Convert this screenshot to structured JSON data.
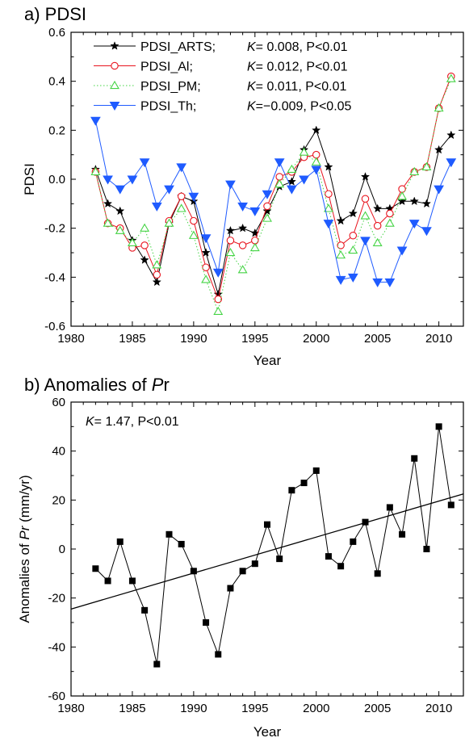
{
  "chart_data": [
    {
      "type": "line",
      "title": "a) PDSI",
      "xlabel": "Year",
      "ylabel": "PDSI",
      "xlim": [
        1980,
        2012
      ],
      "ylim": [
        -0.6,
        0.6
      ],
      "xticks": [
        "1980",
        "1985",
        "1990",
        "1995",
        "2000",
        "2005",
        "2010"
      ],
      "yticks": [
        "-0.6",
        "-0.4",
        "-0.2",
        "0.0",
        "0.2",
        "0.4",
        "0.6"
      ],
      "x": [
        1982,
        1983,
        1984,
        1985,
        1986,
        1987,
        1988,
        1989,
        1990,
        1991,
        1992,
        1993,
        1994,
        1995,
        1996,
        1997,
        1998,
        1999,
        2000,
        2001,
        2002,
        2003,
        2004,
        2005,
        2006,
        2007,
        2008,
        2009,
        2010,
        2011
      ],
      "legend_position": "top-left",
      "series": [
        {
          "name": "PDSI_ARTS;",
          "stat": "K= 0.008, P<0.01",
          "color": "#000000",
          "marker": "star",
          "dash": "solid",
          "values": [
            0.04,
            -0.1,
            -0.13,
            -0.25,
            -0.33,
            -0.42,
            -0.18,
            -0.07,
            -0.09,
            -0.3,
            -0.47,
            -0.21,
            -0.2,
            -0.22,
            -0.13,
            -0.03,
            -0.01,
            0.12,
            0.2,
            0.05,
            -0.17,
            -0.14,
            0.01,
            -0.12,
            -0.12,
            -0.09,
            -0.09,
            -0.1,
            0.12,
            0.18
          ]
        },
        {
          "name": "PDSI_Al;",
          "stat": "K= 0.012, P<0.01",
          "color": "#e8141e",
          "marker": "circle",
          "dash": "solid",
          "values": [
            0.03,
            -0.18,
            -0.2,
            -0.28,
            -0.27,
            -0.39,
            -0.17,
            -0.07,
            -0.17,
            -0.36,
            -0.49,
            -0.25,
            -0.27,
            -0.25,
            -0.11,
            0.01,
            0.03,
            0.09,
            0.1,
            -0.06,
            -0.27,
            -0.23,
            -0.08,
            -0.19,
            -0.14,
            -0.04,
            0.03,
            0.05,
            0.29,
            0.42
          ]
        },
        {
          "name": "PDSI_PM;",
          "stat": "K= 0.011, P<0.01",
          "color": "#45d445",
          "marker": "triangle-up",
          "dash": "dotted",
          "values": [
            0.03,
            -0.18,
            -0.21,
            -0.26,
            -0.2,
            -0.35,
            -0.18,
            -0.12,
            -0.23,
            -0.41,
            -0.54,
            -0.3,
            -0.37,
            -0.28,
            -0.16,
            -0.02,
            0.04,
            0.11,
            0.07,
            -0.12,
            -0.31,
            -0.29,
            -0.15,
            -0.26,
            -0.18,
            -0.07,
            0.03,
            0.05,
            0.29,
            0.41
          ]
        },
        {
          "name": "PDSI_Th;",
          "stat": "K=−0.009, P<0.05",
          "color": "#1f5bff",
          "marker": "triangle-down",
          "dash": "solid",
          "values": [
            0.24,
            0.0,
            -0.04,
            0.0,
            0.07,
            -0.11,
            -0.04,
            0.05,
            -0.07,
            -0.24,
            -0.38,
            -0.02,
            -0.11,
            -0.13,
            -0.06,
            0.07,
            -0.04,
            0.0,
            0.04,
            -0.18,
            -0.41,
            -0.4,
            -0.25,
            -0.42,
            -0.42,
            -0.29,
            -0.18,
            -0.21,
            -0.04,
            0.07
          ]
        }
      ]
    },
    {
      "type": "line",
      "title_prefix": "b) Anomalies of ",
      "title_var": "P",
      "title_suffix": "r",
      "xlabel": "Year",
      "ylabel_prefix": "Anomalies of ",
      "ylabel_var": "Pr",
      "ylabel_suffix": " (mm/yr)",
      "xlim": [
        1980,
        2012
      ],
      "ylim": [
        -60,
        60
      ],
      "xticks": [
        "1980",
        "1985",
        "1990",
        "1995",
        "2000",
        "2005",
        "2010"
      ],
      "yticks": [
        "-60",
        "-40",
        "-20",
        "0",
        "20",
        "40",
        "60"
      ],
      "annotation": "K= 1.47, P<0.01",
      "x": [
        1982,
        1983,
        1984,
        1985,
        1986,
        1987,
        1988,
        1989,
        1990,
        1991,
        1992,
        1993,
        1994,
        1995,
        1996,
        1997,
        1998,
        1999,
        2000,
        2001,
        2002,
        2003,
        2004,
        2005,
        2006,
        2007,
        2008,
        2009,
        2010,
        2011
      ],
      "series": [
        {
          "color": "#000000",
          "marker": "square",
          "values": [
            -8,
            -13,
            3,
            -13,
            -25,
            -47,
            6,
            2,
            -9,
            -30,
            -43,
            -16,
            -9,
            -6,
            10,
            -4,
            24,
            27,
            32,
            -3,
            -7,
            3,
            11,
            -10,
            17,
            6,
            37,
            0,
            50,
            18
          ]
        }
      ],
      "trend": {
        "x": [
          1980,
          2012
        ],
        "y": [
          -24.5,
          22.5
        ]
      }
    }
  ]
}
